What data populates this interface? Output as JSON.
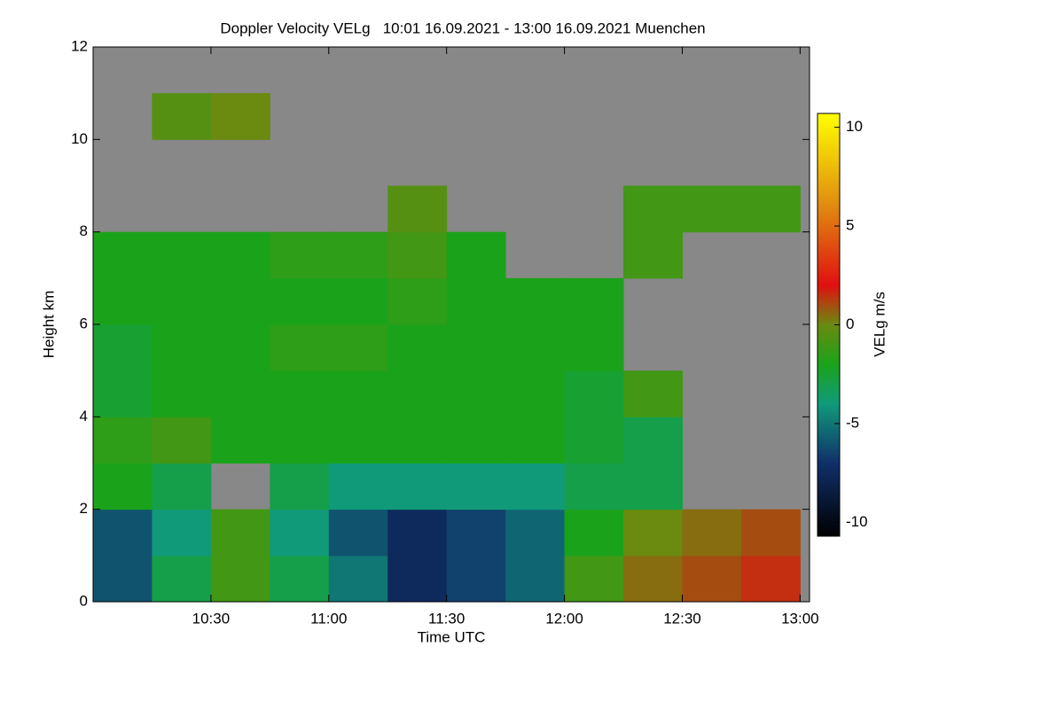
{
  "chart_data": {
    "type": "heatmap",
    "title": "Doppler Velocity VELg   10:01 16.09.2021 - 13:00 16.09.2021 Muenchen",
    "xlabel": "Time UTC",
    "ylabel": "Height km",
    "colorbar_label": "VELg m/s",
    "xlim": [
      10.0,
      13.04
    ],
    "ylim": [
      0,
      12
    ],
    "xticks": [
      {
        "value": 10.5,
        "label": "10:30"
      },
      {
        "value": 11.0,
        "label": "11:00"
      },
      {
        "value": 11.5,
        "label": "11:30"
      },
      {
        "value": 12.0,
        "label": "12:00"
      },
      {
        "value": 12.5,
        "label": "12:30"
      },
      {
        "value": 13.0,
        "label": "13:00"
      }
    ],
    "yticks": [
      0,
      2,
      4,
      6,
      8,
      10,
      12
    ],
    "zlim": [
      -10.7,
      10.7
    ],
    "zticks": [
      -10,
      -5,
      0,
      5,
      10
    ],
    "background": "#888888",
    "colorscale": [
      [
        -10.7,
        "#000000"
      ],
      [
        -7,
        "#10306a"
      ],
      [
        -4,
        "#109a7a"
      ],
      [
        -2,
        "#1aa31a"
      ],
      [
        0,
        "#6a8a10"
      ],
      [
        2,
        "#e01010"
      ],
      [
        6,
        "#e08a10"
      ],
      [
        10.7,
        "#ffff00"
      ]
    ],
    "x": [
      10.125,
      10.375,
      10.625,
      10.875,
      11.125,
      11.375,
      11.625,
      11.875,
      12.125,
      12.375,
      12.625,
      12.875
    ],
    "y": [
      0.5,
      1.5,
      2.5,
      3.5,
      4.5,
      5.5,
      6.5,
      7.5,
      8.5,
      9.5,
      10.5,
      11.5
    ],
    "z": [
      [
        -6,
        -3,
        -1,
        -3,
        -5,
        -7.5,
        -6.5,
        -5.5,
        -1,
        0.5,
        1,
        1.5
      ],
      [
        -6,
        -4,
        -1,
        -4,
        -6,
        -7.5,
        -6.5,
        -5.5,
        -2,
        0,
        0.5,
        1
      ],
      [
        -2,
        -3,
        null,
        -3,
        -4,
        -4,
        -4,
        -4,
        -3,
        -3,
        null,
        null
      ],
      [
        -1.5,
        -1,
        -2,
        -2,
        -2,
        -2,
        -2,
        -2,
        -2.5,
        -3,
        null,
        null
      ],
      [
        -2.5,
        -2,
        -2,
        -2,
        -2,
        -2,
        -2,
        -2,
        -2.5,
        -1,
        null,
        null
      ],
      [
        -2.5,
        -2,
        -2,
        -1.5,
        -1.5,
        -2,
        -2,
        -2,
        -2,
        null,
        null,
        null
      ],
      [
        -2,
        -2,
        -2,
        -2,
        -2,
        -1.5,
        -2,
        -2,
        -2,
        null,
        null,
        null
      ],
      [
        -2,
        -2,
        -2,
        -1.5,
        -1.5,
        -1,
        -2,
        null,
        null,
        -1,
        null,
        null
      ],
      [
        null,
        null,
        null,
        null,
        null,
        -0.5,
        null,
        null,
        null,
        -1,
        -1,
        -1
      ],
      [
        null,
        null,
        null,
        null,
        null,
        null,
        null,
        null,
        null,
        null,
        null,
        null
      ],
      [
        null,
        -0.5,
        0,
        null,
        null,
        null,
        null,
        null,
        null,
        null,
        null,
        null
      ],
      [
        null,
        null,
        null,
        null,
        null,
        null,
        null,
        null,
        null,
        null,
        null,
        null
      ]
    ]
  }
}
